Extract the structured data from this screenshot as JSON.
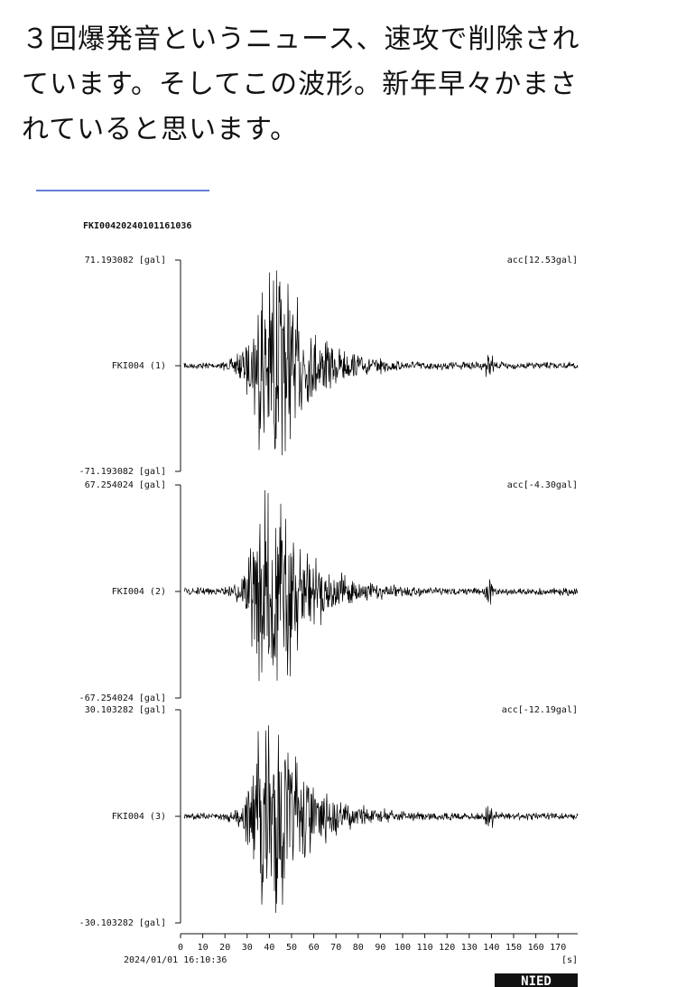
{
  "post": {
    "lines": [
      "３回爆発音というニュース、速攻で削除され",
      "ています。そしてこの波形。新年早々かまさ",
      "れていると思います。"
    ]
  },
  "figure": {
    "title": "FKI00420240101161036",
    "traces": [
      {
        "max_label": "71.193082 [gal]",
        "min_label": "-71.193082 [gal]",
        "channel": "FKI004 (1)",
        "acc": "acc[12.53gal]"
      },
      {
        "max_label": "67.254024 [gal]",
        "min_label": "-67.254024 [gal]",
        "channel": "FKI004 (2)",
        "acc": "acc[-4.30gal]"
      },
      {
        "max_label": "30.103282 [gal]",
        "min_label": "-30.103282 [gal]",
        "channel": "FKI004 (3)",
        "acc": "acc[-12.19gal]"
      }
    ],
    "xticks": [
      0,
      10,
      20,
      30,
      40,
      50,
      60,
      70,
      80,
      90,
      100,
      110,
      120,
      130,
      140,
      150,
      160,
      170
    ],
    "x_unit": "[s]",
    "start_time": "2024/01/01 16:10:36",
    "logo": "NIED"
  }
}
